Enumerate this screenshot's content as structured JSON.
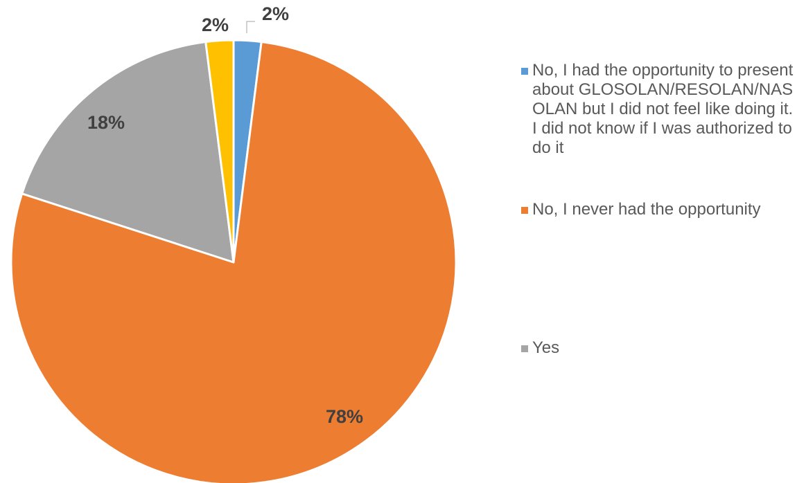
{
  "chart_data": {
    "type": "pie",
    "categories": [
      "No, I had the opportunity to present about GLOSOLAN/RESOLAN/NASOLAN but I did not feel like doing it. I did not know if I was authorized to do it",
      "No, I never had the opportunity",
      "Yes",
      ""
    ],
    "values": [
      2,
      78,
      18,
      2
    ],
    "data_labels": [
      "2%",
      "78%",
      "18%",
      "2%"
    ],
    "colors": [
      "#5B9BD5",
      "#ED7D31",
      "#A5A5A5",
      "#FFC000"
    ],
    "legend_position": "right",
    "title": ""
  },
  "legend": {
    "items": [
      {
        "label": "No, I had the opportunity to present about GLOSOLAN/RESOLAN/NASOLAN but I did not feel like doing it. I did not know if I was authorized to do it",
        "color": "#5B9BD5"
      },
      {
        "label": "No, I never had the opportunity",
        "color": "#ED7D31"
      },
      {
        "label": "Yes",
        "color": "#A5A5A5"
      }
    ]
  }
}
